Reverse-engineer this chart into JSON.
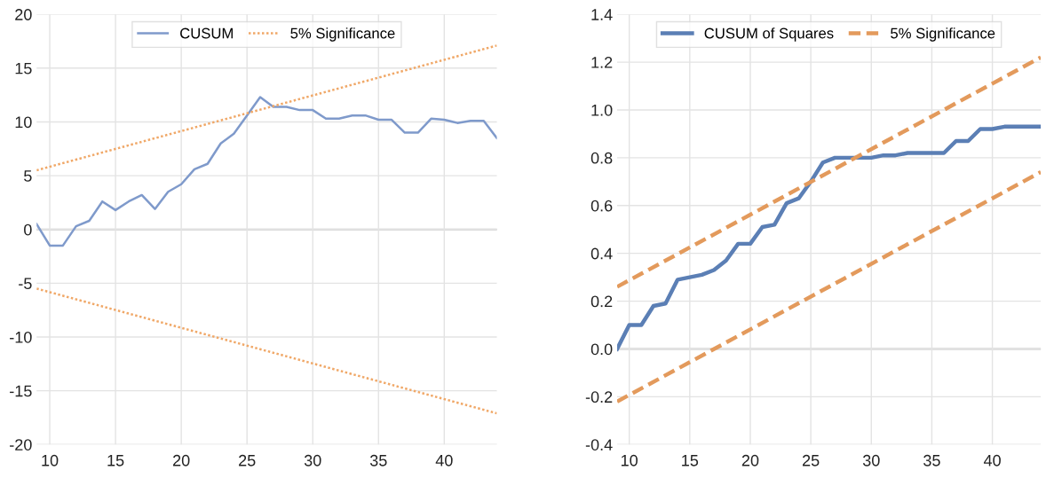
{
  "chart_data": [
    {
      "type": "line",
      "xlim": [
        9,
        44
      ],
      "xticks": [
        10,
        15,
        20,
        25,
        30,
        35,
        40
      ],
      "ylim": [
        -20,
        20
      ],
      "yticks": [
        -20,
        -15,
        -10,
        -5,
        0,
        5,
        10,
        15,
        20
      ],
      "grid": true,
      "legend": "top",
      "ref_lines": [
        {
          "axis": "y",
          "value": 0,
          "color": "#bfbfbf"
        }
      ],
      "series": [
        {
          "name": "CUSUM",
          "color": "#7f9acb",
          "line_style": "solid",
          "x": [
            9,
            10,
            11,
            12,
            13,
            14,
            15,
            16,
            17,
            18,
            19,
            20,
            21,
            22,
            23,
            24,
            25,
            26,
            27,
            28,
            29,
            30,
            31,
            32,
            33,
            34,
            35,
            36,
            37,
            38,
            39,
            40,
            41,
            42,
            43,
            44
          ],
          "values": [
            0.5,
            -1.5,
            -1.5,
            0.3,
            0.8,
            2.6,
            1.8,
            2.6,
            3.2,
            1.9,
            3.5,
            4.2,
            5.6,
            6.1,
            8.0,
            8.9,
            10.6,
            12.3,
            11.4,
            11.4,
            11.1,
            11.1,
            10.3,
            10.3,
            10.6,
            10.6,
            10.2,
            10.2,
            9.0,
            9.0,
            10.3,
            10.2,
            9.9,
            10.1,
            10.1,
            8.5
          ]
        },
        {
          "name": "5% Significance",
          "color": "#f0a868",
          "line_style": "dotted",
          "x": [
            9,
            44
          ],
          "values": [
            5.5,
            17.1
          ]
        },
        {
          "color": "#f0a868",
          "line_style": "dotted",
          "x": [
            9,
            44
          ],
          "values": [
            -5.5,
            -17.1
          ]
        }
      ]
    },
    {
      "type": "line",
      "xlim": [
        9,
        44
      ],
      "xticks": [
        10,
        15,
        20,
        25,
        30,
        35,
        40
      ],
      "ylim": [
        -0.4,
        1.4
      ],
      "yticks": [
        {
          "value": -0.4,
          "label": "-0.4"
        },
        {
          "value": -0.2,
          "label": "-0.2"
        },
        {
          "value": 0,
          "label": "0.0"
        },
        {
          "value": 0.2,
          "label": "0.2"
        },
        {
          "value": 0.4,
          "label": "0.4"
        },
        {
          "value": 0.6,
          "label": "0.6"
        },
        {
          "value": 0.8,
          "label": "0.8"
        },
        {
          "value": 1.0,
          "label": "1.0"
        },
        {
          "value": 1.2,
          "label": "1.2"
        },
        {
          "value": 1.4,
          "label": "1.4"
        }
      ],
      "grid": true,
      "legend": "top",
      "ref_lines": [
        {
          "axis": "y",
          "value": 0,
          "color": "#bfbfbf"
        }
      ],
      "series": [
        {
          "name": "CUSUM of Squares",
          "color": "#5b7fb5",
          "line_style": "solid",
          "x": [
            9,
            10,
            11,
            12,
            13,
            14,
            15,
            16,
            17,
            18,
            19,
            20,
            21,
            22,
            23,
            24,
            25,
            26,
            27,
            28,
            29,
            30,
            31,
            32,
            33,
            34,
            35,
            36,
            37,
            38,
            39,
            40,
            41,
            42,
            43,
            44
          ],
          "values": [
            0,
            0.1,
            0.1,
            0.18,
            0.19,
            0.29,
            0.3,
            0.31,
            0.33,
            0.37,
            0.44,
            0.44,
            0.51,
            0.52,
            0.61,
            0.63,
            0.7,
            0.78,
            0.8,
            0.8,
            0.8,
            0.8,
            0.81,
            0.81,
            0.82,
            0.82,
            0.82,
            0.82,
            0.87,
            0.87,
            0.92,
            0.92,
            0.93,
            0.93,
            0.93,
            0.93
          ]
        },
        {
          "name": "5% Significance",
          "color": "#e39a5c",
          "line_style": "dashed",
          "x": [
            9,
            44
          ],
          "values": [
            0.26,
            1.22
          ]
        },
        {
          "color": "#e39a5c",
          "line_style": "dashed",
          "x": [
            9,
            44
          ],
          "values": [
            -0.22,
            0.74
          ]
        }
      ]
    }
  ]
}
